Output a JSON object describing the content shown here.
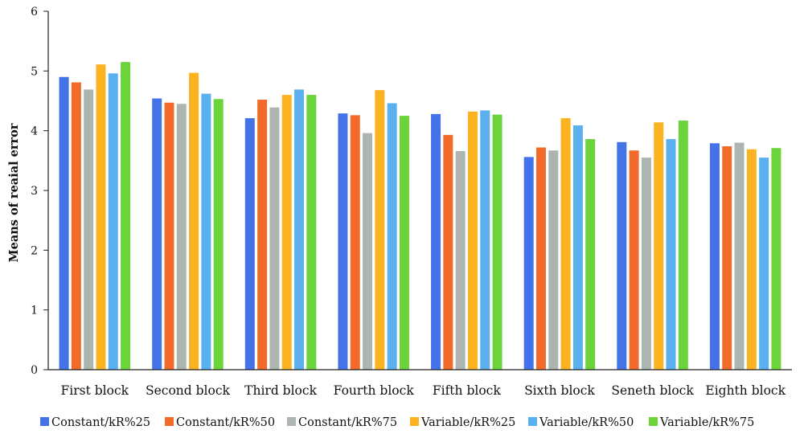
{
  "chart_data": {
    "type": "bar",
    "title": "",
    "xlabel": "",
    "ylabel": "Means of reaial error",
    "ylim": [
      0,
      6
    ],
    "yticks": [
      "0",
      "1",
      "2",
      "3",
      "4",
      "5",
      "6"
    ],
    "grid": false,
    "legend_position": "bottom",
    "categories": [
      "First block",
      "Second block",
      "Third block",
      "Fourth block",
      "Fifth block",
      "Sixth block",
      "Seneth block",
      "Eighth block"
    ],
    "series": [
      {
        "name": "Constant/kR%25",
        "color": "#4472e8",
        "values": [
          4.9,
          4.54,
          4.21,
          4.29,
          4.28,
          3.56,
          3.81,
          3.79
        ]
      },
      {
        "name": "Constant/kR%50",
        "color": "#f26b2a",
        "values": [
          4.81,
          4.47,
          4.52,
          4.26,
          3.93,
          3.72,
          3.67,
          3.74
        ]
      },
      {
        "name": "Constant/kR%75",
        "color": "#adb5b0",
        "values": [
          4.69,
          4.45,
          4.39,
          3.96,
          3.66,
          3.67,
          3.55,
          3.8
        ]
      },
      {
        "name": "Variable/kR%25",
        "color": "#fbb321",
        "values": [
          5.11,
          4.97,
          4.6,
          4.68,
          4.32,
          4.21,
          4.14,
          3.69
        ]
      },
      {
        "name": "Variable/kR%50",
        "color": "#5bb0f0",
        "values": [
          4.96,
          4.62,
          4.69,
          4.46,
          4.34,
          4.09,
          3.86,
          3.55
        ]
      },
      {
        "name": "Variable/kR%75",
        "color": "#6bd43a",
        "values": [
          5.15,
          4.53,
          4.6,
          4.25,
          4.27,
          3.86,
          4.17,
          3.71
        ]
      }
    ]
  }
}
